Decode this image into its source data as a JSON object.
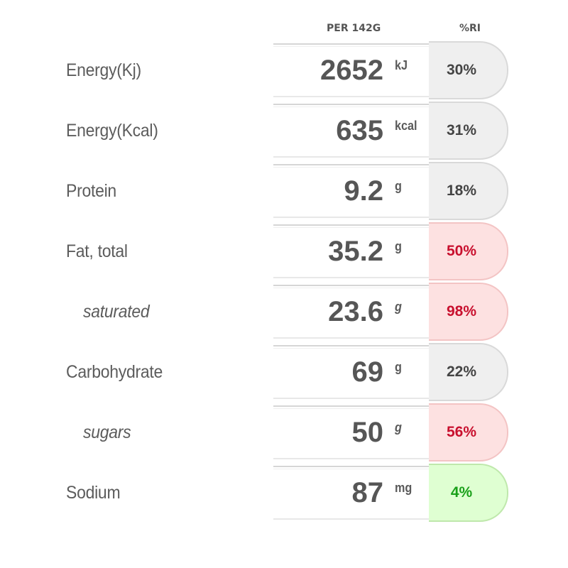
{
  "header": {
    "per": "PER 142G",
    "ri": "%RI"
  },
  "rows": [
    {
      "label": "Energy(Kj)",
      "value": "2652",
      "unit": "kJ",
      "pct": "30%",
      "level": "grey"
    },
    {
      "label": "Energy(Kcal)",
      "value": "635",
      "unit": "kcal",
      "pct": "31%",
      "level": "grey"
    },
    {
      "label": "Protein",
      "value": "9.2",
      "unit": "g",
      "pct": "18%",
      "level": "grey"
    },
    {
      "label": "Fat, total",
      "value": "35.2",
      "unit": "g",
      "pct": "50%",
      "level": "red"
    },
    {
      "label": "saturated",
      "value": "23.6",
      "unit": "g",
      "pct": "98%",
      "level": "red"
    },
    {
      "label": "Carbohydrate",
      "value": "69",
      "unit": "g",
      "pct": "22%",
      "level": "grey"
    },
    {
      "label": "sugars",
      "value": "50",
      "unit": "g",
      "pct": "56%",
      "level": "red"
    },
    {
      "label": "Sodium",
      "value": "87",
      "unit": "mg",
      "pct": "4%",
      "level": "green"
    }
  ],
  "colors": {
    "red_text": "#c8102e",
    "green_text": "#1aa01a",
    "red_bg": "#fde1e1",
    "green_bg": "#dfffd2",
    "grey_bg": "#efefef"
  }
}
